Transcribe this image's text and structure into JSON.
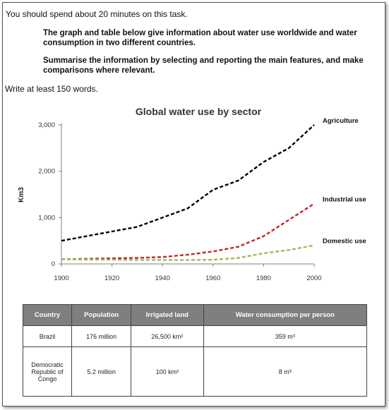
{
  "task": {
    "line1": "You should spend about 20 minutes on this task.",
    "instruction1": "The graph and table below give information about water use worldwide and water consumption in two different countries.",
    "instruction2": "Summarise the information by selecting and reporting the main features, and make comparisons where relevant.",
    "line2": "Write at least 150 words."
  },
  "chart_data": {
    "type": "line",
    "title": "Global water use by sector",
    "xlabel": "",
    "ylabel": "Km3",
    "xlim": [
      1900,
      2000
    ],
    "ylim": [
      0,
      3000
    ],
    "x_ticks": [
      "1900",
      "1920",
      "1940",
      "1960",
      "1980",
      "2000"
    ],
    "y_ticks": [
      "0",
      "1,000",
      "2,000",
      "3,000"
    ],
    "x": [
      1900,
      1910,
      1920,
      1930,
      1940,
      1950,
      1960,
      1970,
      1980,
      1990,
      2000
    ],
    "series": [
      {
        "name": "Agriculture",
        "color": "#000000",
        "values": [
          500,
          600,
          700,
          800,
          1000,
          1200,
          1600,
          1800,
          2200,
          2500,
          3000
        ]
      },
      {
        "name": "Industrial use",
        "color": "#c0272d",
        "values": [
          100,
          110,
          120,
          130,
          150,
          200,
          270,
          370,
          600,
          950,
          1300
        ]
      },
      {
        "name": "Domestic use",
        "color": "#9bbb59",
        "values": [
          100,
          95,
          90,
          85,
          85,
          85,
          90,
          130,
          230,
          300,
          400
        ]
      }
    ],
    "grid": false,
    "legend": "end-of-line labels"
  },
  "table": {
    "headers": [
      "Country",
      "Population",
      "Irrigated land",
      "Water consumption per person"
    ],
    "rows": [
      [
        "Brazil",
        "176 million",
        "26,500 km²",
        "359 m³"
      ],
      [
        "Democratic Republic of Congo",
        "5.2 million",
        "100 km²",
        "8 m³"
      ]
    ]
  }
}
